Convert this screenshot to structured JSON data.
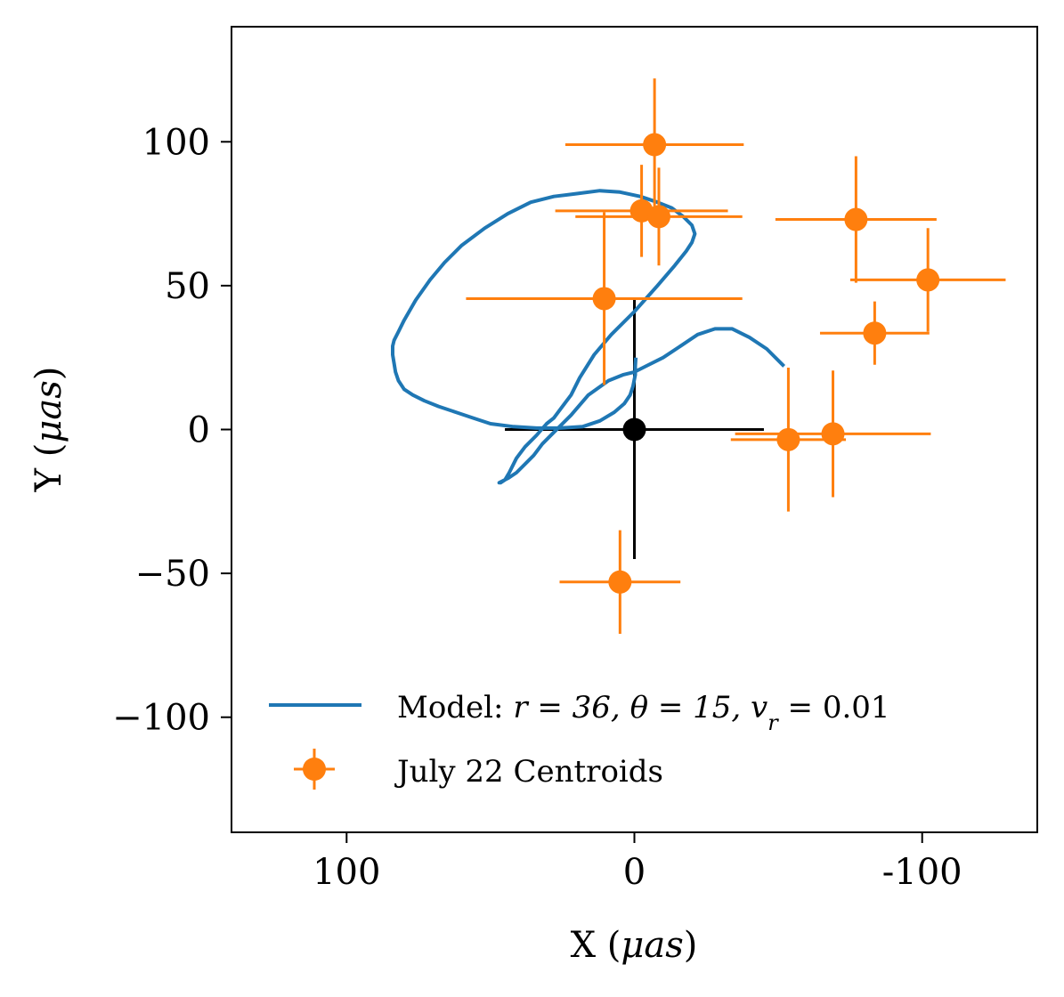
{
  "chart_data": {
    "type": "scatter",
    "xlabel": "X",
    "xlabel_unit": "μas",
    "ylabel": "Y",
    "ylabel_unit": "μas",
    "xlim": [
      140,
      -140
    ],
    "ylim": [
      -140,
      140
    ],
    "x_ticks": [
      100,
      0,
      -100
    ],
    "x_tick_labels": [
      "100",
      "0",
      "-100"
    ],
    "y_ticks": [
      100,
      50,
      0,
      -50,
      -100
    ],
    "y_tick_labels": [
      "100",
      "50",
      "0",
      "−50",
      "−100"
    ],
    "colors": {
      "model": "#1f77b4",
      "centroids": "#ff7f0e",
      "reference": "#000000"
    },
    "legend": {
      "placement": "lower-left",
      "model_label": "Model: ",
      "model_r": "r = 36, ",
      "model_theta": "θ = 15, ",
      "model_v": "v",
      "model_v_sub": "r",
      "model_v_val": " = 0.01",
      "centroid_label": "July 22 Centroids"
    },
    "model_curve": {
      "name": "Model: r = 36, θ = 15, v_r = 0.01",
      "x": [
        -0.5,
        -0.3,
        -0.3,
        0.5,
        1.5,
        3.5,
        7,
        12,
        18,
        26,
        34,
        42,
        50,
        56,
        62,
        68,
        73,
        77,
        80,
        82,
        83,
        83.5,
        84,
        84,
        83.5,
        82,
        80,
        76,
        71,
        66,
        60,
        52,
        44,
        36,
        28,
        20,
        12,
        5,
        -2,
        -8,
        -13,
        -17,
        -20,
        -21,
        -20,
        -18,
        -14,
        -8,
        0,
        8,
        14,
        19,
        22,
        25,
        28,
        30.5,
        34,
        38,
        41,
        43.5,
        45,
        46.5,
        47,
        46,
        44,
        41,
        38,
        35,
        32,
        28,
        22,
        16,
        9,
        4,
        0,
        -4,
        -10,
        -16,
        -22,
        -28,
        -34,
        -40,
        -46,
        -52
      ],
      "y": [
        25,
        22,
        19,
        15,
        12,
        9,
        6,
        3,
        1,
        0.5,
        0.5,
        1,
        2,
        4,
        6,
        8,
        10,
        12,
        14,
        17,
        20,
        23,
        26,
        29,
        31,
        34,
        38,
        45,
        52,
        58,
        64,
        70,
        75,
        79,
        81,
        82,
        83,
        82.5,
        81,
        79,
        77,
        74,
        71,
        68,
        65,
        62,
        57,
        50,
        41,
        33,
        26,
        18,
        12,
        8,
        4,
        2,
        -2,
        -6,
        -10,
        -15,
        -17.5,
        -18.5,
        -18.5,
        -18,
        -17,
        -15,
        -12,
        -9,
        -5,
        -1,
        5,
        12,
        17,
        19,
        20,
        22,
        25,
        29,
        33,
        35,
        35,
        32,
        28,
        22
      ]
    },
    "centroids": {
      "name": "July 22 Centroids",
      "points": [
        {
          "x": -7,
          "y": 99,
          "xerr": 31,
          "yerr": 23
        },
        {
          "x": -2.5,
          "y": 76,
          "xerr": 30,
          "yerr": 16
        },
        {
          "x": -8.5,
          "y": 74,
          "xerr": 29,
          "yerr": 17
        },
        {
          "x": -77,
          "y": 73,
          "xerr": 28,
          "yerr": 22
        },
        {
          "x": -102,
          "y": 52,
          "xerr": 27,
          "yerr": 18
        },
        {
          "x": 10.5,
          "y": 45.5,
          "xerr": 48,
          "yerr": 30
        },
        {
          "x": -83.5,
          "y": 33.5,
          "xerr": 19,
          "yerr": 11
        },
        {
          "x": -53.5,
          "y": -3.5,
          "xerr": 20,
          "yerr": 25
        },
        {
          "x": -69,
          "y": -1.5,
          "xerr": 34,
          "yerr": 22
        },
        {
          "x": 5,
          "y": -53,
          "xerr": 21,
          "yerr": 18
        }
      ]
    },
    "reference_point": {
      "x": 0,
      "y": 0,
      "xerr": 45,
      "yerr": 45
    }
  }
}
